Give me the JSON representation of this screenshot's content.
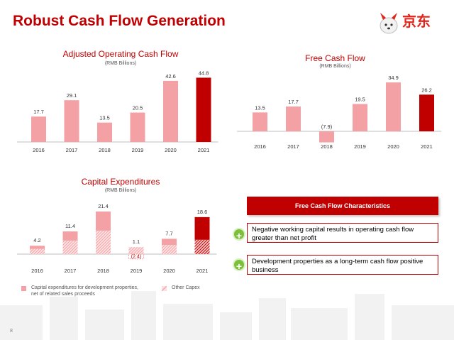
{
  "slide": {
    "title": "Robust Cash Flow Generation",
    "logo_text": "京东",
    "page_number": "8"
  },
  "colors": {
    "pink": "#f4a1a6",
    "red": "#c00000",
    "green": "#7cbf3a"
  },
  "chart_data": [
    {
      "type": "bar",
      "title": "Adjusted Operating Cash Flow",
      "subtitle": "(RMB Billions)",
      "categories": [
        "2016",
        "2017",
        "2018",
        "2019",
        "2020",
        "2021"
      ],
      "values": [
        17.7,
        29.1,
        13.5,
        20.5,
        42.6,
        44.8
      ],
      "labels": [
        "17.7",
        "29.1",
        "13.5",
        "20.5",
        "42.6",
        "44.8"
      ],
      "highlight": [
        false,
        false,
        false,
        false,
        false,
        true
      ],
      "ylim": [
        0,
        47
      ]
    },
    {
      "type": "bar",
      "title": "Free Cash Flow",
      "subtitle": "(RMB Billions)",
      "categories": [
        "2016",
        "2017",
        "2018",
        "2019",
        "2020",
        "2021"
      ],
      "values": [
        13.5,
        17.7,
        -7.9,
        19.5,
        34.9,
        26.2
      ],
      "labels": [
        "13.5",
        "17.7",
        "(7.9)",
        "19.5",
        "34.9",
        "26.2"
      ],
      "highlight": [
        false,
        false,
        false,
        false,
        false,
        true
      ],
      "ylim": [
        -8,
        37
      ]
    },
    {
      "type": "bar",
      "stacked": true,
      "title": "Capital Expenditures",
      "subtitle": "(RMB Billions)",
      "categories": [
        "2016",
        "2017",
        "2018",
        "2019",
        "2020",
        "2021"
      ],
      "totals": [
        4.2,
        11.4,
        21.4,
        1.1,
        7.7,
        18.6
      ],
      "total_labels": [
        "4.2",
        "11.4",
        "21.4",
        "1.1",
        "7.7",
        "18.6"
      ],
      "negative_label": "(2.4)",
      "series": [
        {
          "name": "Capital expenditures for development properties, net of related sales proceeds",
          "values": [
            1.6,
            4.6,
            9.6,
            -2.4,
            3.1,
            11.4
          ]
        },
        {
          "name": "Other Capex",
          "values": [
            2.6,
            6.8,
            11.8,
            3.5,
            4.6,
            7.2
          ]
        }
      ],
      "highlight": [
        false,
        false,
        false,
        false,
        false,
        true
      ],
      "ylim": [
        -3,
        23
      ]
    }
  ],
  "legend": {
    "item1_line1": "Capital expenditures for development properties,",
    "item1_line2": "net of related sales proceeds",
    "item2": "Other Capex"
  },
  "fcf_characteristics": {
    "header": "Free Cash Flow Characteristics",
    "items": [
      "Negative working capital results in operating cash flow greater than net profit",
      "Development properties as a long-term cash flow positive business"
    ],
    "plus_symbol": "+"
  }
}
